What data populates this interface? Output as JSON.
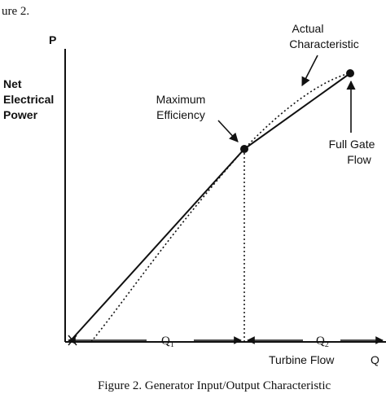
{
  "header_text": "ure 2.",
  "axis": {
    "y_symbol": "P",
    "y_label_lines": [
      "Net",
      "Electrical",
      "Power"
    ],
    "x_label": "Turbine Flow",
    "x_symbol": "Q"
  },
  "annotations": {
    "actual_char_lines": [
      "Actual",
      "Characteristic"
    ],
    "max_eff_lines": [
      "Maximum",
      "Efficiency"
    ],
    "full_gate_lines": [
      "Full Gate",
      "Flow"
    ],
    "q1_main": "Q",
    "q1_sub": "1",
    "q2_main": "Q",
    "q2_sub": "2"
  },
  "caption": "Figure 2.  Generator Input/Output Characteristic",
  "colors": {
    "ink": "#111111",
    "background": "#ffffff"
  }
}
